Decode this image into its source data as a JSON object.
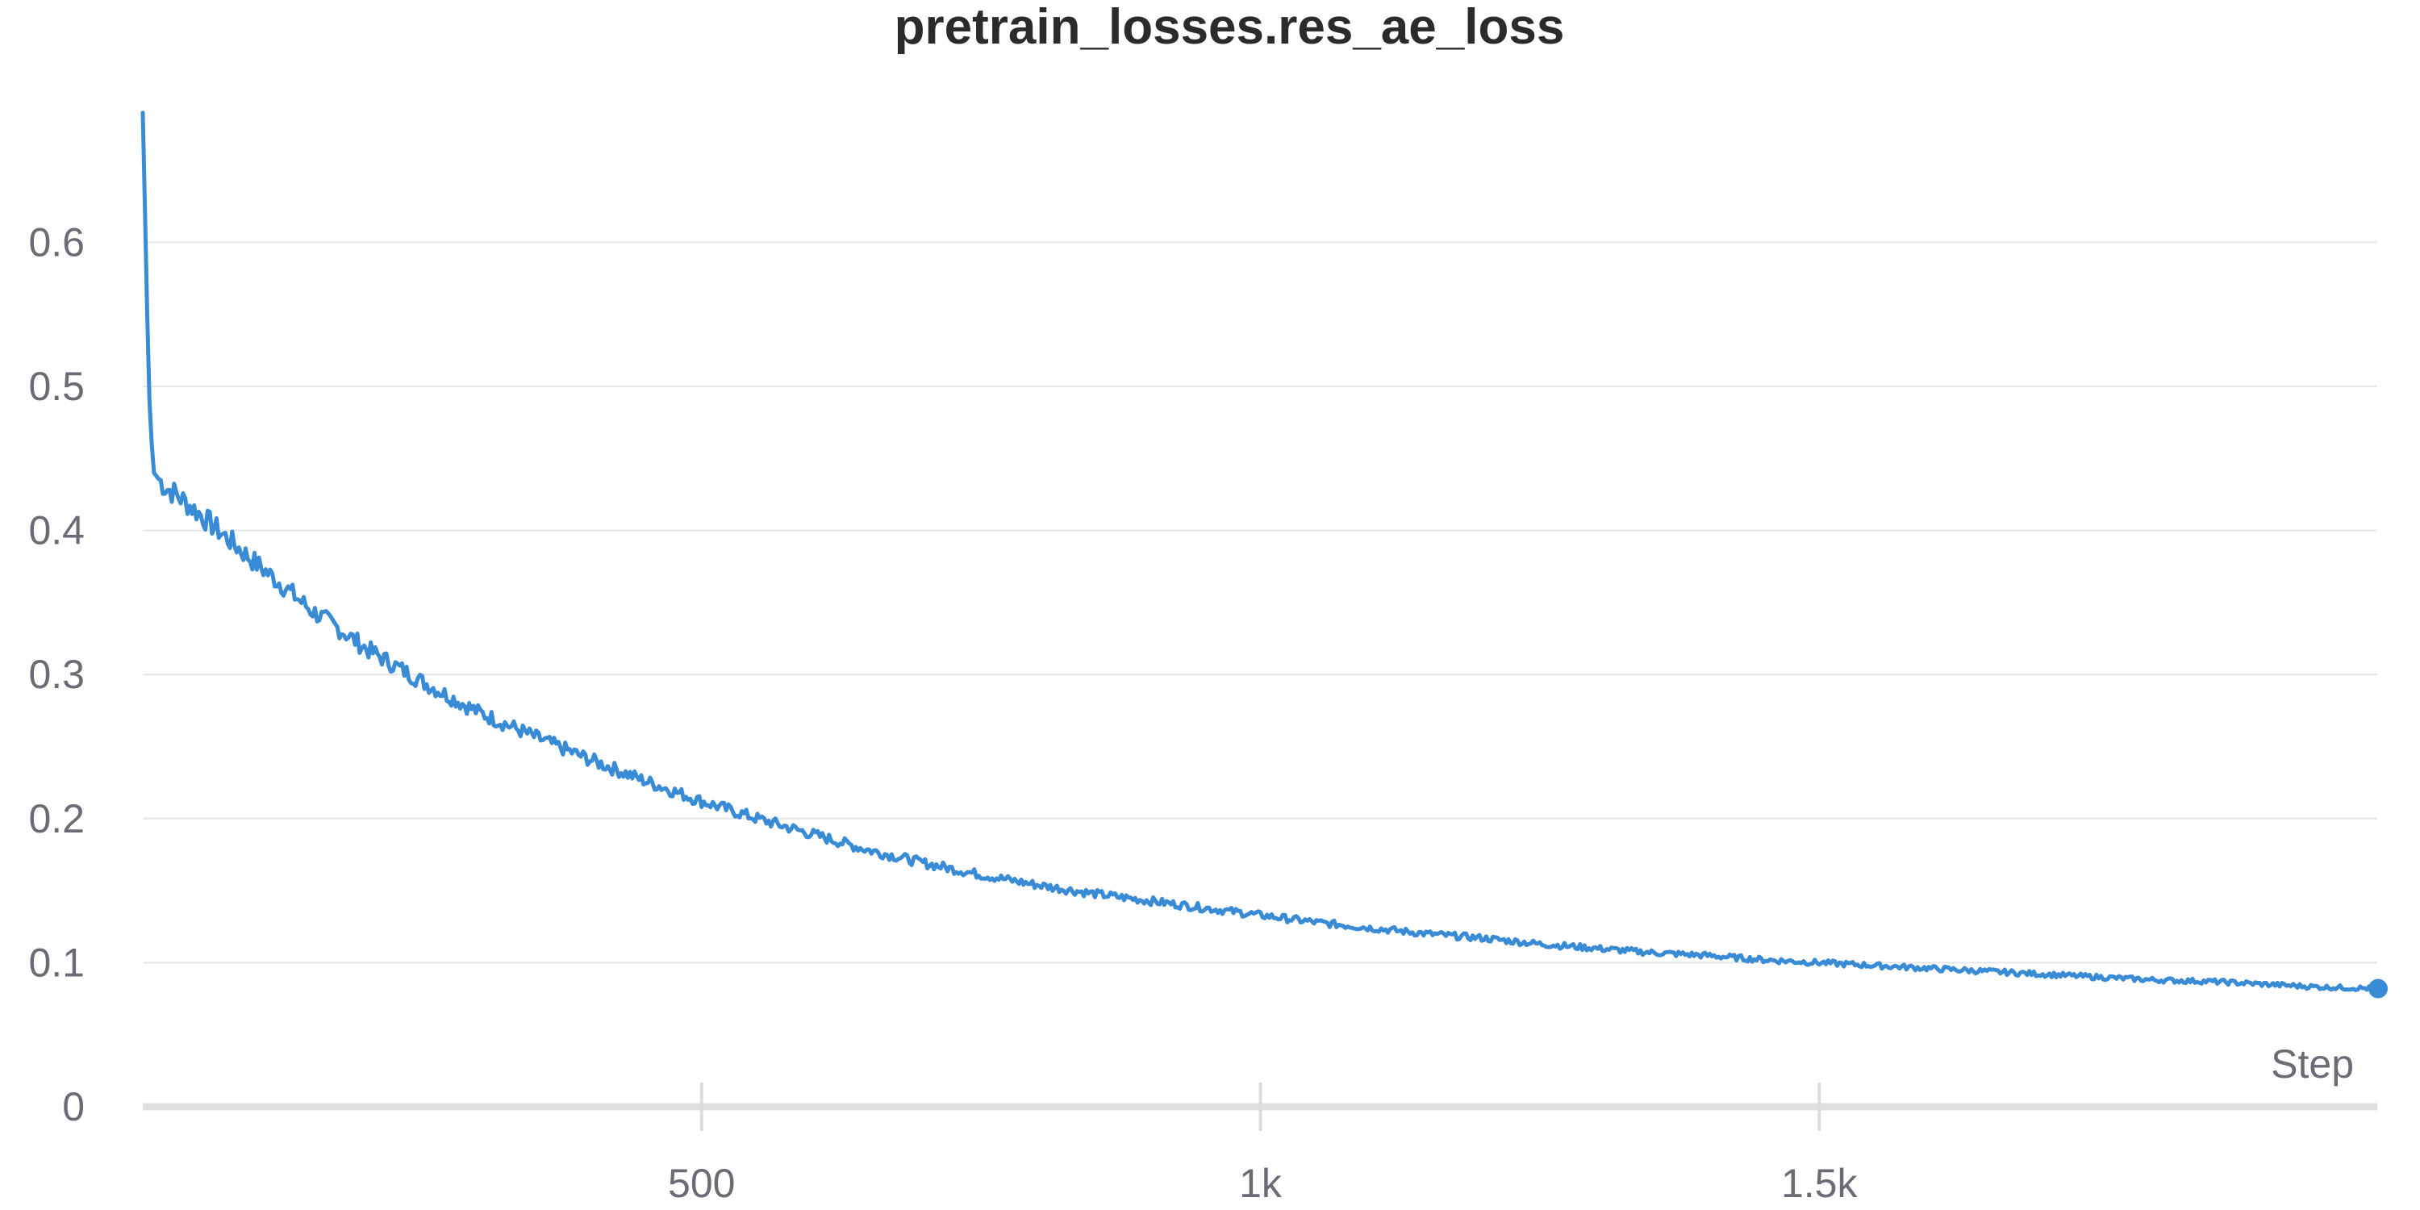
{
  "chart_data": {
    "type": "line",
    "title": "pretrain_losses.res_ae_loss",
    "xlabel": "Step",
    "ylabel": "",
    "xlim": [
      0,
      2000
    ],
    "ylim": [
      0,
      0.69
    ],
    "x_ticks": [
      500,
      1000,
      1500
    ],
    "x_tick_labels": [
      "500",
      "1k",
      "1.5k"
    ],
    "y_ticks": [
      0,
      0.1,
      0.2,
      0.3,
      0.4,
      0.5,
      0.6
    ],
    "y_tick_labels": [
      "0",
      "0.1",
      "0.2",
      "0.3",
      "0.4",
      "0.5",
      "0.6"
    ],
    "grid": true,
    "legend": "none",
    "series": [
      {
        "color": "#3a8bd6",
        "x": [
          0,
          2,
          4,
          6,
          8,
          10,
          15,
          20,
          30,
          50,
          75,
          100,
          125,
          150,
          175,
          200,
          250,
          300,
          350,
          400,
          450,
          500,
          550,
          600,
          650,
          700,
          750,
          800,
          850,
          900,
          950,
          1000,
          1050,
          1100,
          1150,
          1200,
          1250,
          1300,
          1350,
          1400,
          1450,
          1500,
          1550,
          1600,
          1650,
          1700,
          1750,
          1800,
          1850,
          1900,
          1950,
          2000
        ],
        "y": [
          0.69,
          0.62,
          0.55,
          0.49,
          0.46,
          0.44,
          0.435,
          0.43,
          0.425,
          0.412,
          0.395,
          0.378,
          0.362,
          0.345,
          0.332,
          0.318,
          0.295,
          0.274,
          0.257,
          0.241,
          0.226,
          0.212,
          0.2,
          0.189,
          0.178,
          0.169,
          0.161,
          0.154,
          0.148,
          0.143,
          0.138,
          0.133,
          0.128,
          0.124,
          0.12,
          0.117,
          0.113,
          0.11,
          0.107,
          0.105,
          0.102,
          0.1,
          0.098,
          0.096,
          0.094,
          0.092,
          0.09,
          0.088,
          0.087,
          0.085,
          0.083,
          0.082
        ]
      }
    ]
  }
}
